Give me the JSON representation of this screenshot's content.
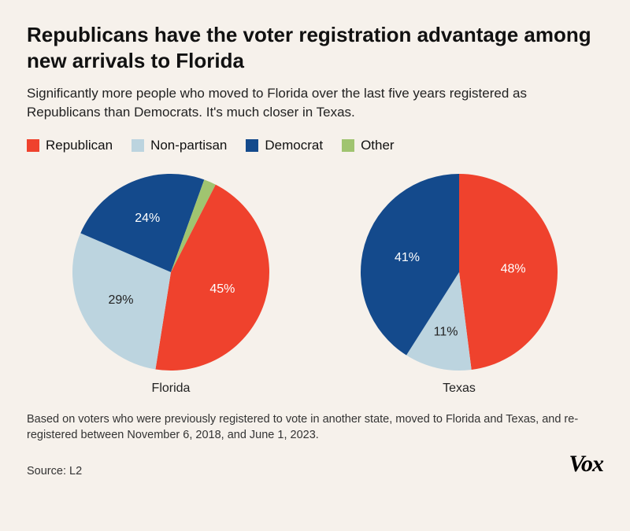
{
  "title": "Republicans have the voter registration advantage among new arrivals to Florida",
  "subtitle": "Significantly more people who moved to Florida over the last five years registered as Republicans than Democrats. It's much closer in Texas.",
  "legend": [
    {
      "label": "Republican",
      "color": "#ef422d"
    },
    {
      "label": "Non-partisan",
      "color": "#bcd4df"
    },
    {
      "label": "Democrat",
      "color": "#144a8c"
    },
    {
      "label": "Other",
      "color": "#a0c470"
    }
  ],
  "charts": [
    {
      "name": "Florida",
      "type": "pie",
      "radius": 125,
      "start_angle": -63,
      "slices": [
        {
          "label": "45%",
          "value": 45,
          "color": "#ef422d",
          "label_color": "light",
          "lr": 0.55
        },
        {
          "label": "29%",
          "value": 29,
          "color": "#bcd4df",
          "label_color": "dark",
          "lr": 0.58
        },
        {
          "label": "24%",
          "value": 24,
          "color": "#144a8c",
          "label_color": "light",
          "lr": 0.6
        },
        {
          "label": "",
          "value": 2,
          "color": "#a0c470",
          "label_color": "dark",
          "lr": 0.6
        }
      ]
    },
    {
      "name": "Texas",
      "type": "pie",
      "radius": 125,
      "start_angle": -90,
      "slices": [
        {
          "label": "48%",
          "value": 48,
          "color": "#ef422d",
          "label_color": "light",
          "lr": 0.55
        },
        {
          "label": "11%",
          "value": 11,
          "color": "#bcd4df",
          "label_color": "dark",
          "lr": 0.62
        },
        {
          "label": "41%",
          "value": 41,
          "color": "#144a8c",
          "label_color": "light",
          "lr": 0.55
        }
      ]
    }
  ],
  "footnote": "Based on voters who were previously registered to vote in another state, moved to Florida and Texas, and re-registered between November 6, 2018, and June 1, 2023.",
  "source": "Source: L2",
  "logo": "Vox",
  "background_color": "#f6f1eb"
}
